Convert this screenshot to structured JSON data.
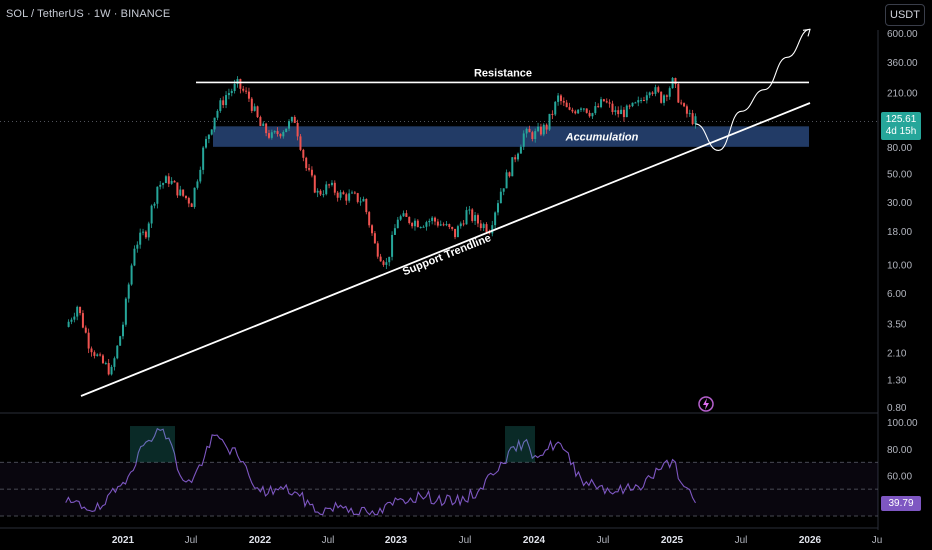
{
  "header": {
    "symbol_title": "SOL / TetherUS · 1W · BINANCE",
    "currency_button": "USDT"
  },
  "price_label": {
    "value": "125.61",
    "countdown": "4d 15h",
    "color": "#26a69a"
  },
  "rsi_label": {
    "value": "39.79",
    "color": "#7e57c2"
  },
  "colors": {
    "up": "#26a69a",
    "down": "#ef5350",
    "rsi_line": "#7e57c2",
    "accumulation_zone": "#2a4a7f",
    "background": "#000000"
  },
  "chart_data": [
    {
      "type": "candlestick",
      "title": "SOL / TetherUS · 1W · BINANCE",
      "y_scale": "log",
      "y_ticks": [
        "600.00",
        "360.00",
        "210.00",
        "125.61",
        "80.00",
        "50.00",
        "30.00",
        "18.00",
        "10.00",
        "6.00",
        "3.50",
        "2.10",
        "1.30",
        "0.80"
      ],
      "y_tick_values": [
        600,
        360,
        210,
        80,
        50,
        30,
        18,
        10,
        6,
        3.5,
        2.1,
        1.3,
        0.8
      ],
      "x_ticks": [
        "2021",
        "Jul",
        "2022",
        "Jul",
        "2023",
        "Jul",
        "2024",
        "Jul",
        "2025",
        "Jul",
        "2026",
        "Ju"
      ],
      "x_tick_bold": [
        "2021",
        "2022",
        "2023",
        "2024",
        "2025",
        "2026"
      ],
      "last_close": 125.61,
      "price_path": [
        [
          "2020-08",
          3.3
        ],
        [
          "2020-09",
          4.8
        ],
        [
          "2020-10",
          2.5
        ],
        [
          "2020-11",
          1.8
        ],
        [
          "2020-12",
          1.5
        ],
        [
          "2021-01",
          3.5
        ],
        [
          "2021-02",
          14
        ],
        [
          "2021-03",
          18
        ],
        [
          "2021-04",
          40
        ],
        [
          "2021-05",
          45
        ],
        [
          "2021-06",
          35
        ],
        [
          "2021-07",
          30
        ],
        [
          "2021-08",
          75
        ],
        [
          "2021-09",
          140
        ],
        [
          "2021-10",
          200
        ],
        [
          "2021-11",
          240
        ],
        [
          "2021-12",
          190
        ],
        [
          "2022-01",
          115
        ],
        [
          "2022-02",
          95
        ],
        [
          "2022-03",
          110
        ],
        [
          "2022-04",
          130
        ],
        [
          "2022-05",
          55
        ],
        [
          "2022-06",
          35
        ],
        [
          "2022-07",
          40
        ],
        [
          "2022-08",
          34
        ],
        [
          "2022-09",
          33
        ],
        [
          "2022-10",
          31
        ],
        [
          "2022-11",
          14
        ],
        [
          "2022-12",
          10
        ],
        [
          "2023-01",
          23
        ],
        [
          "2023-02",
          22
        ],
        [
          "2023-03",
          21
        ],
        [
          "2023-04",
          22
        ],
        [
          "2023-05",
          20
        ],
        [
          "2023-06",
          17
        ],
        [
          "2023-07",
          25
        ],
        [
          "2023-08",
          21
        ],
        [
          "2023-09",
          19
        ],
        [
          "2023-10",
          37
        ],
        [
          "2023-11",
          60
        ],
        [
          "2023-12",
          100
        ],
        [
          "2024-01",
          100
        ],
        [
          "2024-02",
          115
        ],
        [
          "2024-03",
          190
        ],
        [
          "2024-04",
          145
        ],
        [
          "2024-05",
          170
        ],
        [
          "2024-06",
          145
        ],
        [
          "2024-07",
          180
        ],
        [
          "2024-08",
          145
        ],
        [
          "2024-09",
          150
        ],
        [
          "2024-10",
          170
        ],
        [
          "2024-11",
          235
        ],
        [
          "2024-12",
          190
        ],
        [
          "2025-01",
          250
        ],
        [
          "2025-02",
          150
        ],
        [
          "2025-03",
          125.61
        ]
      ],
      "annotations": [
        {
          "text": "Resistance",
          "price": 250
        },
        {
          "text": "Accumulation",
          "zone": [
            80,
            115
          ]
        },
        {
          "text": "Support Trendline",
          "from": [
            "2020-11",
            1.0
          ],
          "to": [
            "2025-06",
            103
          ]
        }
      ],
      "projection": [
        [
          "2025-03",
          120
        ],
        [
          "2025-05",
          75
        ],
        [
          "2025-07",
          150
        ],
        [
          "2025-09",
          220
        ],
        [
          "2025-11",
          390
        ],
        [
          "2026-01",
          640
        ]
      ]
    },
    {
      "type": "line",
      "title": "RSI",
      "y_ticks": [
        "100.00",
        "80.00",
        "60.00"
      ],
      "y_tick_values": [
        100,
        80,
        60
      ],
      "bands": [
        70,
        50,
        30
      ],
      "series": [
        {
          "values": [
            [
              "2020-08",
              40
            ],
            [
              "2020-11",
              35
            ],
            [
              "2021-01",
              55
            ],
            [
              "2021-03",
              85
            ],
            [
              "2021-04",
              95
            ],
            [
              "2021-05",
              88
            ],
            [
              "2021-06",
              60
            ],
            [
              "2021-07",
              55
            ],
            [
              "2021-09",
              90
            ],
            [
              "2021-11",
              75
            ],
            [
              "2021-12",
              60
            ],
            [
              "2022-01",
              48
            ],
            [
              "2022-03",
              50
            ],
            [
              "2022-04",
              48
            ],
            [
              "2022-06",
              33
            ],
            [
              "2022-08",
              38
            ],
            [
              "2022-11",
              30
            ],
            [
              "2023-01",
              42
            ],
            [
              "2023-03",
              45
            ],
            [
              "2023-06",
              40
            ],
            [
              "2023-08",
              48
            ],
            [
              "2023-10",
              70
            ],
            [
              "2023-12",
              85
            ],
            [
              "2024-01",
              75
            ],
            [
              "2024-03",
              85
            ],
            [
              "2024-05",
              58
            ],
            [
              "2024-08",
              48
            ],
            [
              "2024-10",
              52
            ],
            [
              "2024-12",
              65
            ],
            [
              "2025-01",
              72
            ],
            [
              "2025-02",
              52
            ],
            [
              "2025-03",
              39.79
            ]
          ]
        }
      ],
      "last_value": 39.79
    }
  ]
}
